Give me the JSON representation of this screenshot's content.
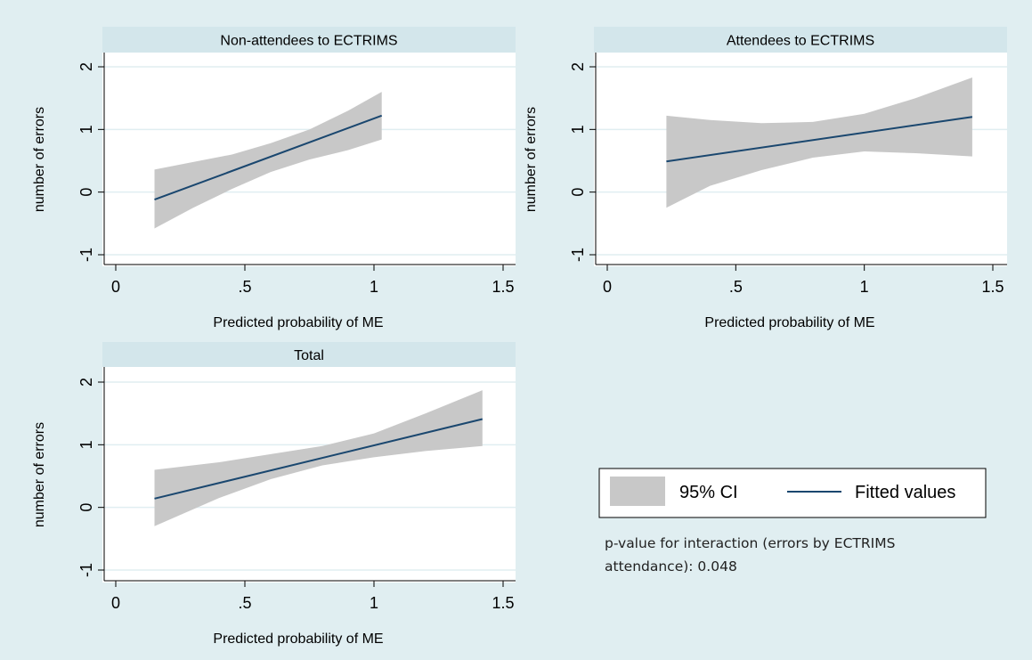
{
  "colors": {
    "background": "#e0eef1",
    "plot_area": "#ffffff",
    "panel_strip": "#d3e6eb",
    "gridline": "#e0eef1",
    "ci_band": "#c8c8c8",
    "fitted_line": "#1a476f",
    "axis": "#000000"
  },
  "legend": {
    "ci_label": "95% CI",
    "fitted_label": "Fitted values",
    "placement": "right of bottom panel"
  },
  "note": {
    "line1": "p-value for interaction (errors by ECTRIMS",
    "line2": "attendance): 0.048"
  },
  "chart_data": [
    {
      "type": "line",
      "panel": "Non-attendees to ECTRIMS",
      "title": "Non-attendees to ECTRIMS",
      "xlabel": "Predicted probability of ME",
      "ylabel": "number of errors",
      "xlim": [
        0,
        1.5
      ],
      "ylim": [
        -1,
        2
      ],
      "xticks": [
        "0",
        ".5",
        "1",
        "1.5"
      ],
      "yticks": [
        "-1",
        "0",
        "1",
        "2"
      ],
      "grid": true,
      "series": [
        {
          "name": "95% CI",
          "kind": "band",
          "x": [
            0.15,
            0.3,
            0.45,
            0.6,
            0.75,
            0.9,
            1.03
          ],
          "lower": [
            -0.58,
            -0.25,
            0.05,
            0.32,
            0.52,
            0.67,
            0.84
          ],
          "upper": [
            0.36,
            0.48,
            0.6,
            0.78,
            1.0,
            1.3,
            1.6
          ]
        },
        {
          "name": "Fitted values",
          "kind": "line",
          "x": [
            0.15,
            1.03
          ],
          "y": [
            -0.12,
            1.22
          ]
        }
      ]
    },
    {
      "type": "line",
      "panel": "Attendees to ECTRIMS",
      "title": "Attendees to ECTRIMS",
      "xlabel": "Predicted probability of ME",
      "ylabel": "number of errors",
      "xlim": [
        0,
        1.5
      ],
      "ylim": [
        -1,
        2
      ],
      "xticks": [
        "0",
        ".5",
        "1",
        "1.5"
      ],
      "yticks": [
        "-1",
        "0",
        "1",
        "2"
      ],
      "grid": true,
      "series": [
        {
          "name": "95% CI",
          "kind": "band",
          "x": [
            0.23,
            0.4,
            0.6,
            0.8,
            1.0,
            1.2,
            1.42
          ],
          "lower": [
            -0.25,
            0.1,
            0.35,
            0.55,
            0.65,
            0.62,
            0.57
          ],
          "upper": [
            1.22,
            1.15,
            1.1,
            1.12,
            1.25,
            1.5,
            1.83
          ]
        },
        {
          "name": "Fitted values",
          "kind": "line",
          "x": [
            0.23,
            1.42
          ],
          "y": [
            0.49,
            1.2
          ]
        }
      ]
    },
    {
      "type": "line",
      "panel": "Total",
      "title": "Total",
      "xlabel": "Predicted probability of ME",
      "ylabel": "number of errors",
      "xlim": [
        0,
        1.5
      ],
      "ylim": [
        -1,
        2
      ],
      "xticks": [
        "0",
        ".5",
        "1",
        "1.5"
      ],
      "yticks": [
        "-1",
        "0",
        "1",
        "2"
      ],
      "grid": true,
      "series": [
        {
          "name": "95% CI",
          "kind": "band",
          "x": [
            0.15,
            0.4,
            0.6,
            0.8,
            1.0,
            1.2,
            1.42
          ],
          "lower": [
            -0.3,
            0.15,
            0.45,
            0.67,
            0.8,
            0.9,
            0.98
          ],
          "upper": [
            0.6,
            0.72,
            0.85,
            0.98,
            1.18,
            1.5,
            1.87
          ]
        },
        {
          "name": "Fitted values",
          "kind": "line",
          "x": [
            0.15,
            1.42
          ],
          "y": [
            0.14,
            1.41
          ]
        }
      ]
    }
  ]
}
